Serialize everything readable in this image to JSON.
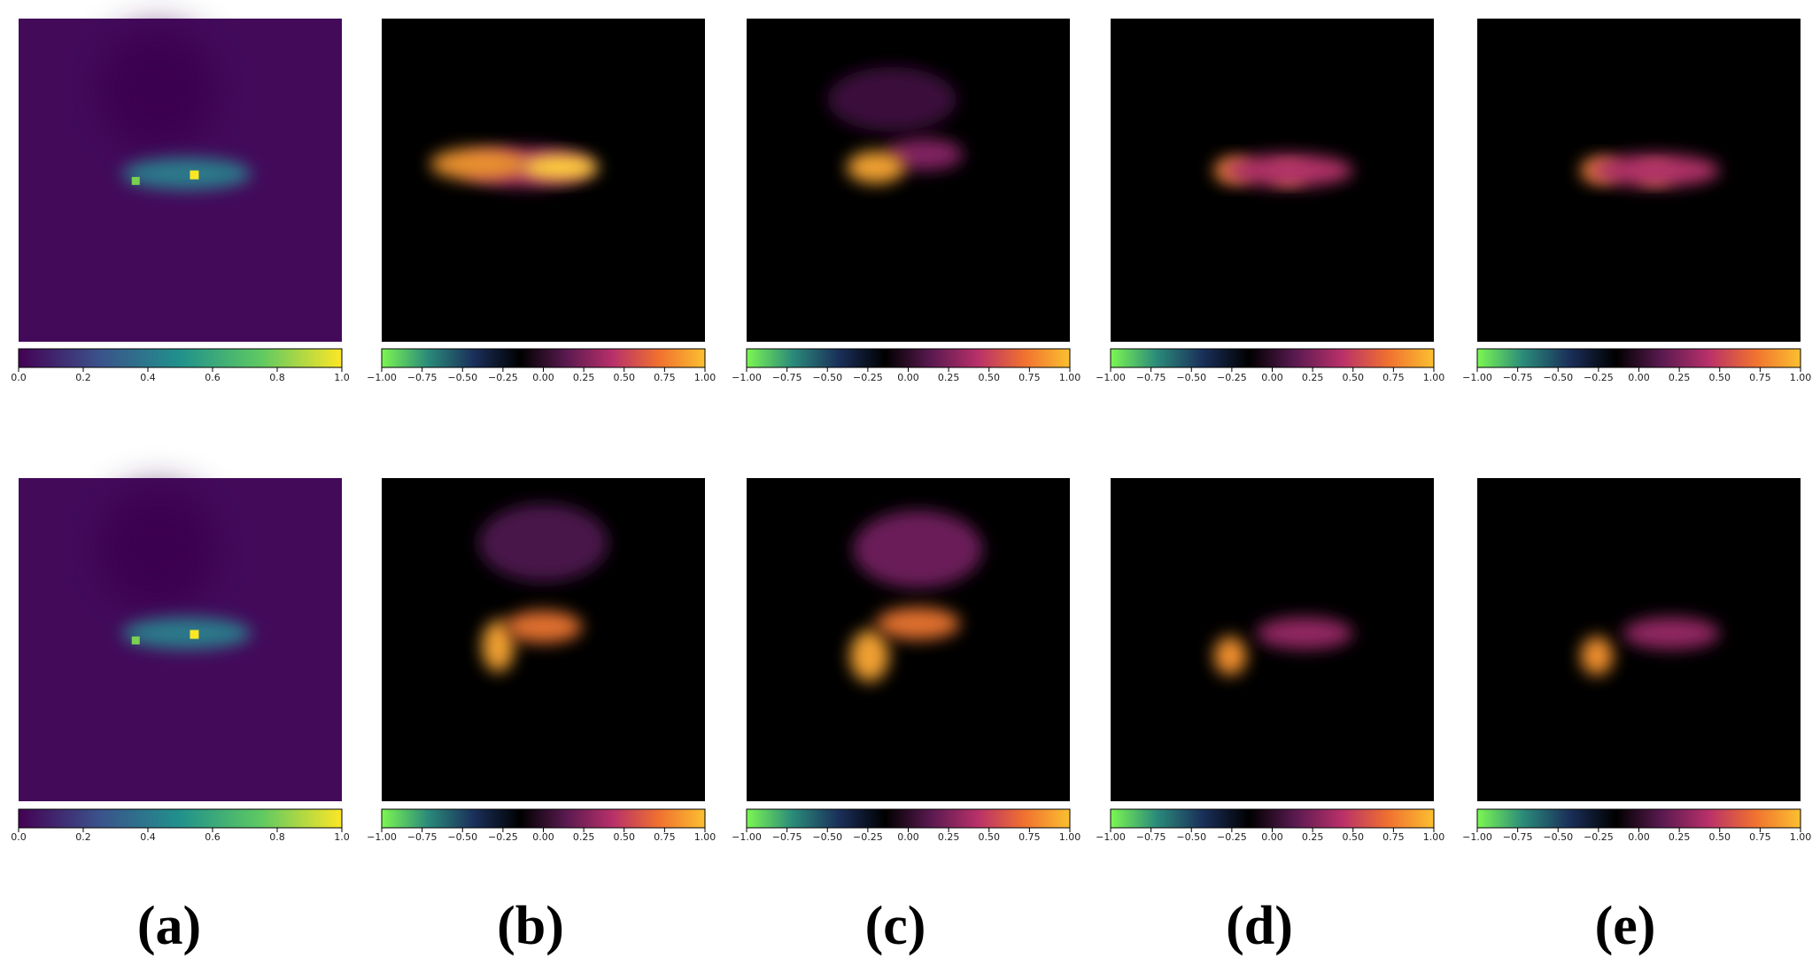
{
  "panel_labels": [
    "(a)",
    "(b)",
    "(c)",
    "(d)",
    "(e)"
  ],
  "chart_data": [
    {
      "type": "colorbar",
      "colors": [
        "#440154",
        "#3b528b",
        "#21918c",
        "#5ec962",
        "#fde725"
      ],
      "xlim": [
        0,
        1
      ],
      "xticks": [
        {
          "value": 0,
          "label": "0.0"
        },
        {
          "value": 0.2,
          "label": "0.2"
        },
        {
          "value": 0.4,
          "label": "0.4"
        },
        {
          "value": 0.6,
          "label": "0.6"
        },
        {
          "value": 0.8,
          "label": "0.8"
        },
        {
          "value": 1,
          "label": "1.0"
        }
      ]
    },
    {
      "type": "colorbar",
      "colors": [
        "#7cf752",
        "#2a8a7a",
        "#1a2f5a",
        "#000000",
        "#5a1a50",
        "#b8306a",
        "#f07030",
        "#fbc030"
      ],
      "xlim": [
        -1,
        1
      ],
      "xticks": [
        {
          "value": -1,
          "label": "−1.00"
        },
        {
          "value": -0.75,
          "label": "−0.75"
        },
        {
          "value": -0.5,
          "label": "−0.50"
        },
        {
          "value": -0.25,
          "label": "−0.25"
        },
        {
          "value": 0,
          "label": "0.00"
        },
        {
          "value": 0.25,
          "label": "0.25"
        },
        {
          "value": 0.5,
          "label": "0.50"
        },
        {
          "value": 0.75,
          "label": "0.75"
        },
        {
          "value": 1,
          "label": "1.00"
        }
      ]
    },
    {
      "type": "colorbar",
      "colors": [
        "#7cf752",
        "#2a8a7a",
        "#1a2f5a",
        "#000000",
        "#5a1a50",
        "#b8306a",
        "#f07030",
        "#fbc030"
      ],
      "xlim": [
        -1,
        1
      ],
      "xticks": [
        {
          "value": -1,
          "label": "−1.00"
        },
        {
          "value": -0.75,
          "label": "−0.75"
        },
        {
          "value": -0.5,
          "label": "−0.50"
        },
        {
          "value": -0.25,
          "label": "−0.25"
        },
        {
          "value": 0,
          "label": "0.00"
        },
        {
          "value": 0.25,
          "label": "0.25"
        },
        {
          "value": 0.5,
          "label": "0.50"
        },
        {
          "value": 0.75,
          "label": "0.75"
        },
        {
          "value": 1,
          "label": "1.00"
        }
      ]
    },
    {
      "type": "colorbar",
      "colors": [
        "#7cf752",
        "#2a8a7a",
        "#1a2f5a",
        "#000000",
        "#5a1a50",
        "#b8306a",
        "#f07030",
        "#fbc030"
      ],
      "xlim": [
        -1,
        1
      ],
      "xticks": [
        {
          "value": -1,
          "label": "−1.00"
        },
        {
          "value": -0.75,
          "label": "−0.75"
        },
        {
          "value": -0.5,
          "label": "−0.50"
        },
        {
          "value": -0.25,
          "label": "−0.25"
        },
        {
          "value": 0,
          "label": "0.00"
        },
        {
          "value": 0.25,
          "label": "0.25"
        },
        {
          "value": 0.5,
          "label": "0.50"
        },
        {
          "value": 0.75,
          "label": "0.75"
        },
        {
          "value": 1,
          "label": "1.00"
        }
      ]
    },
    {
      "type": "colorbar",
      "colors": [
        "#7cf752",
        "#2a8a7a",
        "#1a2f5a",
        "#000000",
        "#5a1a50",
        "#b8306a",
        "#f07030",
        "#fbc030"
      ],
      "xlim": [
        -1,
        1
      ],
      "xticks": [
        {
          "value": -1,
          "label": "−1.00"
        },
        {
          "value": -0.75,
          "label": "−0.75"
        },
        {
          "value": -0.5,
          "label": "−0.50"
        },
        {
          "value": -0.25,
          "label": "−0.25"
        },
        {
          "value": 0,
          "label": "0.00"
        },
        {
          "value": 0.25,
          "label": "0.25"
        },
        {
          "value": 0.5,
          "label": "0.50"
        },
        {
          "value": 0.75,
          "label": "0.75"
        },
        {
          "value": 1,
          "label": "1.00"
        }
      ]
    },
    {
      "type": "colorbar",
      "colors": [
        "#440154",
        "#3b528b",
        "#21918c",
        "#5ec962",
        "#fde725"
      ],
      "xlim": [
        0,
        1
      ],
      "xticks": [
        {
          "value": 0,
          "label": "0.0"
        },
        {
          "value": 0.2,
          "label": "0.2"
        },
        {
          "value": 0.4,
          "label": "0.4"
        },
        {
          "value": 0.6,
          "label": "0.6"
        },
        {
          "value": 0.8,
          "label": "0.8"
        },
        {
          "value": 1,
          "label": "1.0"
        }
      ]
    },
    {
      "type": "colorbar",
      "colors": [
        "#7cf752",
        "#2a8a7a",
        "#1a2f5a",
        "#000000",
        "#5a1a50",
        "#b8306a",
        "#f07030",
        "#fbc030"
      ],
      "xlim": [
        -1,
        1
      ],
      "xticks": [
        {
          "value": -1,
          "label": "−1.00"
        },
        {
          "value": -0.75,
          "label": "−0.75"
        },
        {
          "value": -0.5,
          "label": "−0.50"
        },
        {
          "value": -0.25,
          "label": "−0.25"
        },
        {
          "value": 0,
          "label": "0.00"
        },
        {
          "value": 0.25,
          "label": "0.25"
        },
        {
          "value": 0.5,
          "label": "0.50"
        },
        {
          "value": 0.75,
          "label": "0.75"
        },
        {
          "value": 1,
          "label": "1.00"
        }
      ]
    },
    {
      "type": "colorbar",
      "colors": [
        "#7cf752",
        "#2a8a7a",
        "#1a2f5a",
        "#000000",
        "#5a1a50",
        "#b8306a",
        "#f07030",
        "#fbc030"
      ],
      "xlim": [
        -1,
        1
      ],
      "xticks": [
        {
          "value": -1,
          "label": "−1.00"
        },
        {
          "value": -0.75,
          "label": "−0.75"
        },
        {
          "value": -0.5,
          "label": "−0.50"
        },
        {
          "value": -0.25,
          "label": "−0.25"
        },
        {
          "value": 0,
          "label": "0.00"
        },
        {
          "value": 0.25,
          "label": "0.25"
        },
        {
          "value": 0.5,
          "label": "0.50"
        },
        {
          "value": 0.75,
          "label": "0.75"
        },
        {
          "value": 1,
          "label": "1.00"
        }
      ]
    },
    {
      "type": "colorbar",
      "colors": [
        "#7cf752",
        "#2a8a7a",
        "#1a2f5a",
        "#000000",
        "#5a1a50",
        "#b8306a",
        "#f07030",
        "#fbc030"
      ],
      "xlim": [
        -1,
        1
      ],
      "xticks": [
        {
          "value": -1,
          "label": "−1.00"
        },
        {
          "value": -0.75,
          "label": "−0.75"
        },
        {
          "value": -0.5,
          "label": "−0.50"
        },
        {
          "value": -0.25,
          "label": "−0.25"
        },
        {
          "value": 0,
          "label": "0.00"
        },
        {
          "value": 0.25,
          "label": "0.25"
        },
        {
          "value": 0.5,
          "label": "0.50"
        },
        {
          "value": 0.75,
          "label": "0.75"
        },
        {
          "value": 1,
          "label": "1.00"
        }
      ]
    },
    {
      "type": "colorbar",
      "colors": [
        "#7cf752",
        "#2a8a7a",
        "#1a2f5a",
        "#000000",
        "#5a1a50",
        "#b8306a",
        "#f07030",
        "#fbc030"
      ],
      "xlim": [
        -1,
        1
      ],
      "xticks": [
        {
          "value": -1,
          "label": "−1.00"
        },
        {
          "value": -0.75,
          "label": "−0.75"
        },
        {
          "value": -0.5,
          "label": "−0.50"
        },
        {
          "value": -0.25,
          "label": "−0.25"
        },
        {
          "value": 0,
          "label": "0.00"
        },
        {
          "value": 0.25,
          "label": "0.25"
        },
        {
          "value": 0.5,
          "label": "0.50"
        },
        {
          "value": 0.75,
          "label": "0.75"
        },
        {
          "value": 1,
          "label": "1.00"
        }
      ]
    }
  ]
}
